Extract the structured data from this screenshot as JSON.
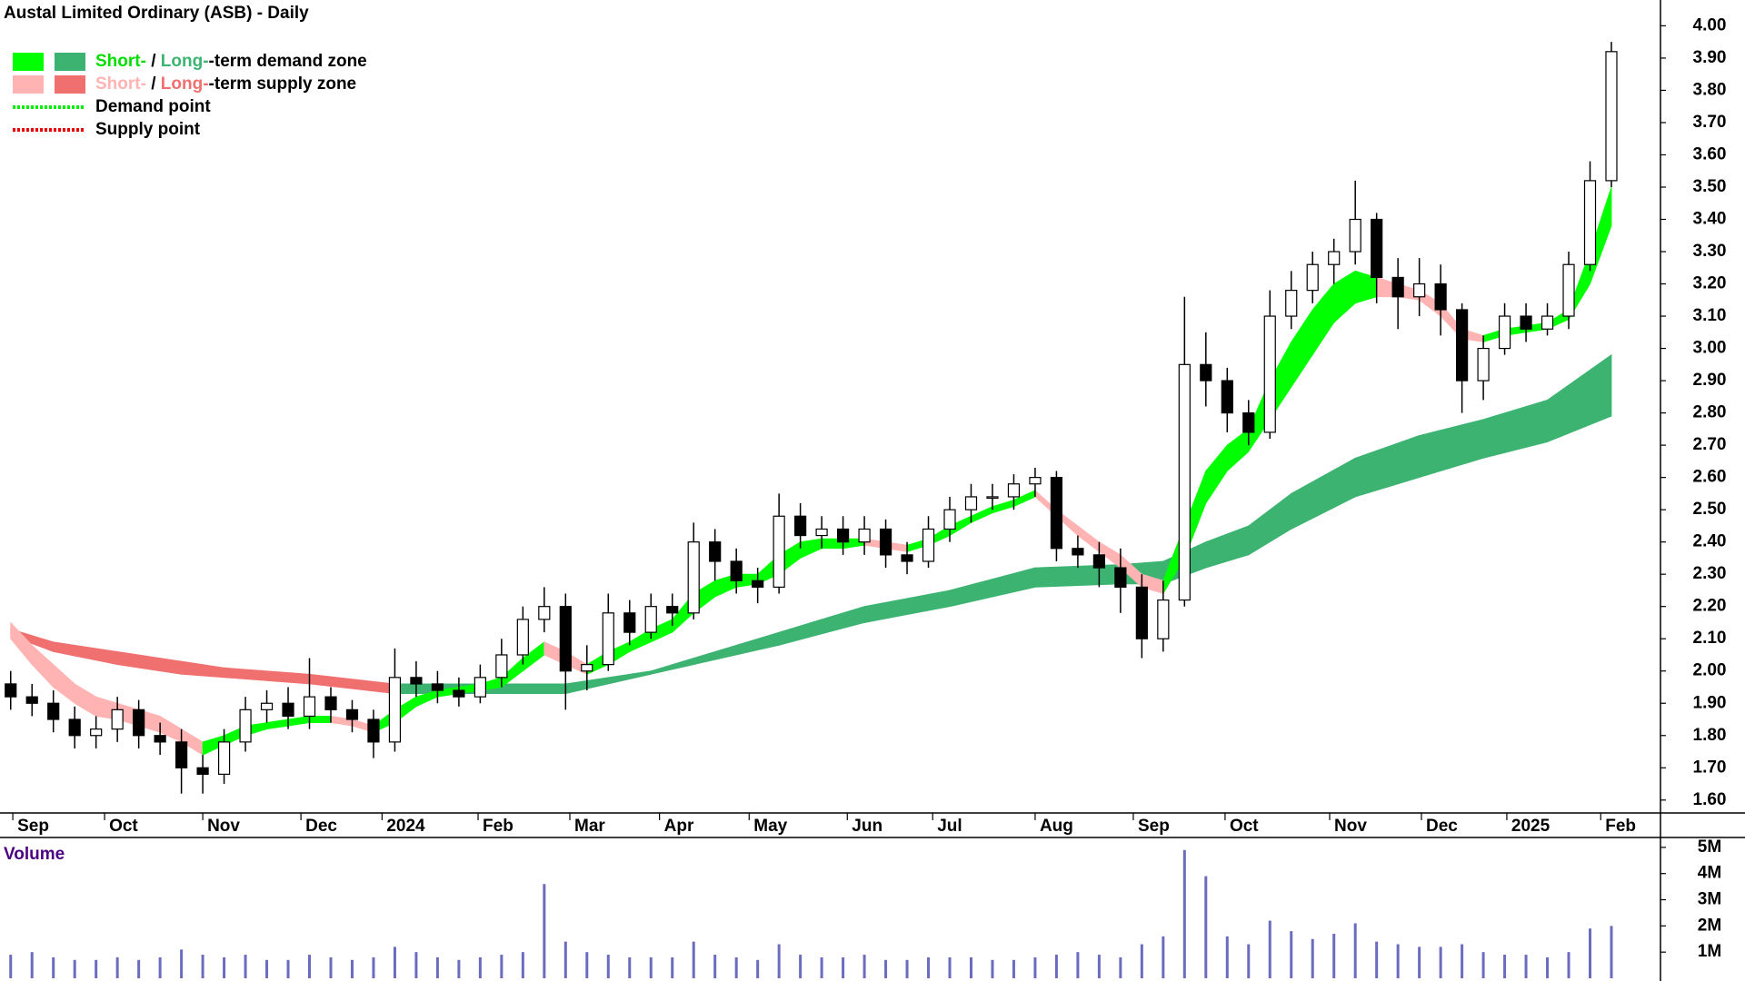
{
  "chart_data": [
    {
      "type": "candlestick",
      "title": "Austal Limited Ordinary (ASB) - Daily",
      "legend": [
        {
          "swatches": [
            "#00ff00",
            "#3cb371"
          ],
          "parts": [
            {
              "text": "Short-",
              "color": "#00dd00"
            },
            {
              "text": " / ",
              "color": "#000000"
            },
            {
              "text": "Long-",
              "color": "#3cb371"
            },
            {
              "text": "-term demand zone",
              "color": "#000000"
            }
          ]
        },
        {
          "swatches": [
            "#ffb3b3",
            "#f07070"
          ],
          "parts": [
            {
              "text": "Short-",
              "color": "#ffb3b3"
            },
            {
              "text": " / ",
              "color": "#000000"
            },
            {
              "text": "Long-",
              "color": "#f07070"
            },
            {
              "text": "-term supply zone",
              "color": "#000000"
            }
          ]
        },
        {
          "line": "#00ee00",
          "parts": [
            {
              "text": "Demand point",
              "color": "#000000"
            }
          ]
        },
        {
          "line": "#ee0000",
          "parts": [
            {
              "text": "Supply point",
              "color": "#000000"
            }
          ]
        }
      ],
      "xlim": [
        -0.5,
        77.3
      ],
      "xticks": [
        {
          "value": 0.1,
          "label": "Sep"
        },
        {
          "value": 4.4,
          "label": "Oct"
        },
        {
          "value": 9.0,
          "label": "Nov"
        },
        {
          "value": 13.6,
          "label": "Dec"
        },
        {
          "value": 17.4,
          "label": "2024"
        },
        {
          "value": 21.9,
          "label": "Feb"
        },
        {
          "value": 26.2,
          "label": "Mar"
        },
        {
          "value": 30.4,
          "label": "Apr"
        },
        {
          "value": 34.6,
          "label": "May"
        },
        {
          "value": 39.2,
          "label": "Jun"
        },
        {
          "value": 43.2,
          "label": "Jul"
        },
        {
          "value": 48.0,
          "label": "Aug"
        },
        {
          "value": 52.6,
          "label": "Sep"
        },
        {
          "value": 56.9,
          "label": "Oct"
        },
        {
          "value": 61.8,
          "label": "Nov"
        },
        {
          "value": 66.1,
          "label": "Dec"
        },
        {
          "value": 70.1,
          "label": "2025"
        },
        {
          "value": 74.5,
          "label": "Feb"
        }
      ],
      "ylim": [
        1.56,
        4.08
      ],
      "yticks": [
        {
          "value": 1.6,
          "label": "1.60"
        },
        {
          "value": 1.7,
          "label": "1.70"
        },
        {
          "value": 1.8,
          "label": "1.80"
        },
        {
          "value": 1.9,
          "label": "1.90"
        },
        {
          "value": 2.0,
          "label": "2.00"
        },
        {
          "value": 2.1,
          "label": "2.10"
        },
        {
          "value": 2.2,
          "label": "2.20"
        },
        {
          "value": 2.3,
          "label": "2.30"
        },
        {
          "value": 2.4,
          "label": "2.40"
        },
        {
          "value": 2.5,
          "label": "2.50"
        },
        {
          "value": 2.6,
          "label": "2.60"
        },
        {
          "value": 2.7,
          "label": "2.70"
        },
        {
          "value": 2.8,
          "label": "2.80"
        },
        {
          "value": 2.9,
          "label": "2.90"
        },
        {
          "value": 3.0,
          "label": "3.00"
        },
        {
          "value": 3.1,
          "label": "3.10"
        },
        {
          "value": 3.2,
          "label": "3.20"
        },
        {
          "value": 3.3,
          "label": "3.30"
        },
        {
          "value": 3.4,
          "label": "3.40"
        },
        {
          "value": 3.5,
          "label": "3.50"
        },
        {
          "value": 3.6,
          "label": "3.60"
        },
        {
          "value": 3.7,
          "label": "3.70"
        },
        {
          "value": 3.8,
          "label": "3.80"
        },
        {
          "value": 3.9,
          "label": "3.90"
        },
        {
          "value": 4.0,
          "label": "4.00"
        }
      ],
      "open": [
        1.96,
        1.92,
        1.9,
        1.85,
        1.8,
        1.82,
        1.88,
        1.8,
        1.78,
        1.7,
        1.68,
        1.78,
        1.88,
        1.9,
        1.86,
        1.92,
        1.88,
        1.85,
        1.78,
        1.98,
        1.96,
        1.94,
        1.92,
        1.98,
        2.05,
        2.16,
        2.2,
        2.0,
        2.02,
        2.18,
        2.12,
        2.2,
        2.18,
        2.4,
        2.34,
        2.28,
        2.26,
        2.48,
        2.42,
        2.44,
        2.4,
        2.44,
        2.36,
        2.34,
        2.44,
        2.5,
        2.54,
        2.54,
        2.58,
        2.6,
        2.38,
        2.36,
        2.32,
        2.26,
        2.1,
        2.22,
        2.95,
        2.9,
        2.8,
        2.74,
        3.1,
        3.18,
        3.26,
        3.3,
        3.4,
        3.22,
        3.16,
        3.2,
        3.12,
        2.9,
        3.0,
        3.1,
        3.06,
        3.1,
        3.26,
        3.52
      ],
      "high": [
        2.0,
        1.96,
        1.94,
        1.89,
        1.86,
        1.92,
        1.91,
        1.84,
        1.82,
        1.74,
        1.82,
        1.92,
        1.94,
        1.95,
        2.04,
        1.95,
        1.91,
        1.88,
        2.07,
        2.03,
        2.0,
        1.98,
        2.02,
        2.1,
        2.2,
        2.26,
        2.24,
        2.08,
        2.24,
        2.22,
        2.24,
        2.24,
        2.46,
        2.44,
        2.38,
        2.32,
        2.55,
        2.52,
        2.48,
        2.48,
        2.48,
        2.47,
        2.4,
        2.48,
        2.54,
        2.58,
        2.58,
        2.61,
        2.63,
        2.62,
        2.42,
        2.4,
        2.38,
        2.3,
        2.28,
        3.16,
        3.05,
        2.94,
        2.84,
        3.18,
        3.24,
        3.3,
        3.34,
        3.52,
        3.42,
        3.28,
        3.28,
        3.26,
        3.14,
        3.04,
        3.14,
        3.14,
        3.14,
        3.3,
        3.58,
        3.95
      ],
      "low": [
        1.88,
        1.86,
        1.81,
        1.76,
        1.76,
        1.78,
        1.76,
        1.74,
        1.62,
        1.62,
        1.65,
        1.75,
        1.84,
        1.82,
        1.82,
        1.84,
        1.81,
        1.73,
        1.75,
        1.92,
        1.9,
        1.89,
        1.9,
        1.95,
        2.02,
        2.12,
        1.88,
        1.94,
        2.0,
        2.08,
        2.1,
        2.14,
        2.16,
        2.28,
        2.24,
        2.21,
        2.24,
        2.38,
        2.38,
        2.36,
        2.36,
        2.32,
        2.3,
        2.32,
        2.4,
        2.46,
        2.5,
        2.5,
        2.54,
        2.34,
        2.32,
        2.26,
        2.18,
        2.04,
        2.06,
        2.2,
        2.82,
        2.74,
        2.7,
        2.72,
        3.06,
        3.14,
        3.2,
        3.26,
        3.14,
        3.06,
        3.1,
        3.04,
        2.8,
        2.84,
        2.98,
        3.02,
        3.04,
        3.06,
        3.24,
        3.5
      ],
      "close": [
        1.92,
        1.9,
        1.85,
        1.8,
        1.82,
        1.88,
        1.8,
        1.78,
        1.7,
        1.68,
        1.78,
        1.88,
        1.9,
        1.86,
        1.92,
        1.88,
        1.85,
        1.78,
        1.98,
        1.96,
        1.94,
        1.92,
        1.98,
        2.05,
        2.16,
        2.2,
        2.0,
        2.02,
        2.18,
        2.12,
        2.2,
        2.18,
        2.4,
        2.34,
        2.28,
        2.26,
        2.48,
        2.42,
        2.44,
        2.4,
        2.44,
        2.36,
        2.34,
        2.44,
        2.5,
        2.54,
        2.54,
        2.58,
        2.6,
        2.38,
        2.36,
        2.32,
        2.26,
        2.1,
        2.22,
        2.95,
        2.9,
        2.8,
        2.74,
        3.1,
        3.18,
        3.26,
        3.3,
        3.4,
        3.22,
        3.16,
        3.2,
        3.12,
        2.9,
        3.0,
        3.1,
        3.06,
        3.1,
        3.26,
        3.52,
        3.92
      ],
      "short_zone": {
        "demand_color": "#00ff00",
        "supply_color": "#ffb3b3",
        "upper": [
          2.15,
          2.08,
          2.02,
          1.96,
          1.92,
          1.9,
          1.88,
          1.86,
          1.82,
          1.78,
          1.8,
          1.83,
          1.84,
          1.85,
          1.86,
          1.86,
          1.85,
          1.83,
          1.88,
          1.92,
          1.94,
          1.95,
          1.96,
          1.98,
          2.04,
          2.09,
          2.06,
          2.02,
          2.06,
          2.09,
          2.13,
          2.16,
          2.24,
          2.28,
          2.3,
          2.3,
          2.36,
          2.4,
          2.41,
          2.41,
          2.41,
          2.4,
          2.39,
          2.41,
          2.45,
          2.48,
          2.51,
          2.53,
          2.56,
          2.5,
          2.45,
          2.4,
          2.36,
          2.3,
          2.28,
          2.45,
          2.62,
          2.7,
          2.75,
          2.9,
          3.02,
          3.12,
          3.2,
          3.24,
          3.22,
          3.2,
          3.18,
          3.14,
          3.06,
          3.04,
          3.06,
          3.07,
          3.08,
          3.12,
          3.3,
          3.5
        ],
        "lower": [
          2.1,
          2.02,
          1.95,
          1.9,
          1.86,
          1.85,
          1.83,
          1.81,
          1.78,
          1.74,
          1.77,
          1.8,
          1.82,
          1.83,
          1.84,
          1.84,
          1.83,
          1.81,
          1.84,
          1.89,
          1.92,
          1.93,
          1.94,
          1.95,
          2.0,
          2.05,
          2.02,
          1.99,
          2.02,
          2.06,
          2.09,
          2.12,
          2.18,
          2.23,
          2.26,
          2.27,
          2.3,
          2.35,
          2.38,
          2.38,
          2.39,
          2.38,
          2.37,
          2.39,
          2.42,
          2.46,
          2.49,
          2.51,
          2.54,
          2.48,
          2.42,
          2.37,
          2.32,
          2.26,
          2.24,
          2.35,
          2.52,
          2.62,
          2.68,
          2.78,
          2.88,
          2.98,
          3.08,
          3.14,
          3.16,
          3.16,
          3.15,
          3.1,
          3.03,
          3.02,
          3.04,
          3.05,
          3.06,
          3.09,
          3.2,
          3.38
        ]
      },
      "long_zone": {
        "demand_color": "#3cb371",
        "supply_color": "#f07070",
        "x": [
          0,
          2,
          5,
          8,
          10,
          14,
          18,
          22,
          26,
          30,
          32,
          36,
          40,
          44,
          48,
          52,
          54,
          56,
          58,
          60,
          63,
          66,
          69,
          72,
          75
        ],
        "upper": [
          2.13,
          2.09,
          2.06,
          2.03,
          2.01,
          1.99,
          1.96,
          1.96,
          1.96,
          2.0,
          2.04,
          2.12,
          2.2,
          2.25,
          2.32,
          2.33,
          2.34,
          2.4,
          2.45,
          2.55,
          2.66,
          2.73,
          2.78,
          2.84,
          2.98
        ],
        "lower": [
          2.11,
          2.06,
          2.02,
          1.99,
          1.98,
          1.96,
          1.93,
          1.93,
          1.93,
          1.99,
          2.02,
          2.08,
          2.15,
          2.2,
          2.26,
          2.27,
          2.27,
          2.32,
          2.36,
          2.44,
          2.54,
          2.6,
          2.66,
          2.71,
          2.79
        ]
      }
    },
    {
      "type": "bar",
      "title": "Volume",
      "color": "#6b6bbf",
      "ylim": [
        0,
        5100000
      ],
      "yticks": [
        {
          "value": 1000000,
          "label": "1M"
        },
        {
          "value": 2000000,
          "label": "2M"
        },
        {
          "value": 3000000,
          "label": "3M"
        },
        {
          "value": 4000000,
          "label": "4M"
        },
        {
          "value": 5000000,
          "label": "5M"
        }
      ],
      "values": [
        900000,
        1000000,
        800000,
        700000,
        700000,
        800000,
        700000,
        800000,
        1100000,
        900000,
        800000,
        900000,
        700000,
        700000,
        900000,
        800000,
        700000,
        800000,
        1200000,
        1000000,
        800000,
        700000,
        800000,
        900000,
        1000000,
        3600000,
        1400000,
        1000000,
        900000,
        800000,
        800000,
        800000,
        1400000,
        900000,
        800000,
        700000,
        1300000,
        900000,
        800000,
        800000,
        900000,
        700000,
        700000,
        800000,
        800000,
        800000,
        700000,
        700000,
        800000,
        900000,
        1000000,
        900000,
        800000,
        1300000,
        1600000,
        4900000,
        3900000,
        1600000,
        1300000,
        2200000,
        1800000,
        1500000,
        1700000,
        2100000,
        1400000,
        1300000,
        1200000,
        1200000,
        1300000,
        1000000,
        900000,
        900000,
        800000,
        1000000,
        1900000,
        2000000
      ]
    }
  ]
}
